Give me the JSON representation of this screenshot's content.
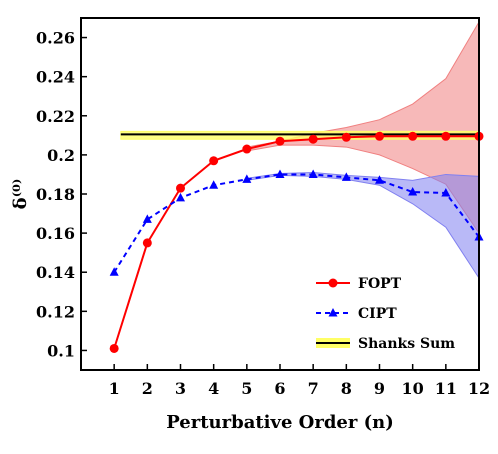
{
  "chart_data": {
    "type": "line",
    "xlabel": "Perturbative Order (n)",
    "ylabel": "δ⁽⁰⁾",
    "xlim": [
      0,
      12
    ],
    "ylim": [
      0.09,
      0.27
    ],
    "x_ticks": [
      1,
      2,
      3,
      4,
      5,
      6,
      7,
      8,
      9,
      10,
      11,
      12
    ],
    "y_ticks": [
      0.1,
      0.12,
      0.14,
      0.16,
      0.18,
      0.2,
      0.22,
      0.24,
      0.26
    ],
    "y_tick_labels": [
      "0.1",
      "0.12",
      "0.14",
      "0.16",
      "0.18",
      "0.2",
      "0.22",
      "0.24",
      "0.26"
    ],
    "grid": false,
    "legend_position": "bottom-right",
    "series": [
      {
        "name": "FOPT",
        "style": "solid",
        "marker": "circle",
        "color": "#ff0000",
        "band_color": "#f08080",
        "x": [
          1,
          2,
          3,
          4,
          5,
          6,
          7,
          8,
          9,
          10,
          11,
          12
        ],
        "values": [
          0.101,
          0.155,
          0.183,
          0.197,
          0.203,
          0.207,
          0.208,
          0.209,
          0.2095,
          0.2095,
          0.2095,
          0.2095
        ],
        "band_upper": [
          null,
          null,
          null,
          null,
          0.204,
          0.207,
          0.211,
          0.214,
          0.218,
          0.226,
          0.239,
          0.268
        ],
        "band_lower": [
          null,
          null,
          null,
          null,
          0.202,
          0.205,
          0.205,
          0.204,
          0.2,
          0.193,
          0.185,
          0.16
        ]
      },
      {
        "name": "CIPT",
        "style": "dashed",
        "marker": "triangle",
        "color": "#0000ff",
        "band_color": "#8080f0",
        "x": [
          1,
          2,
          3,
          4,
          5,
          6,
          7,
          8,
          9,
          10,
          11,
          12
        ],
        "values": [
          0.14,
          0.167,
          0.178,
          0.1845,
          0.1875,
          0.19,
          0.19,
          0.1885,
          0.187,
          0.181,
          0.1805,
          0.158
        ],
        "band_upper": [
          null,
          null,
          null,
          null,
          0.188,
          0.1905,
          0.191,
          0.1895,
          0.1885,
          0.187,
          0.19,
          0.189
        ],
        "band_lower": [
          null,
          null,
          null,
          null,
          0.187,
          0.1895,
          0.189,
          0.1875,
          0.1845,
          0.175,
          0.163,
          0.137
        ]
      },
      {
        "name": "Shanks Sum",
        "style": "horizontal-line",
        "color": "#000000",
        "band_color": "#ffff66",
        "x": [
          1.2,
          12
        ],
        "values": [
          0.2105,
          0.2105
        ],
        "band_upper": [
          0.212,
          0.212
        ],
        "band_lower": [
          0.208,
          0.208
        ]
      }
    ]
  }
}
